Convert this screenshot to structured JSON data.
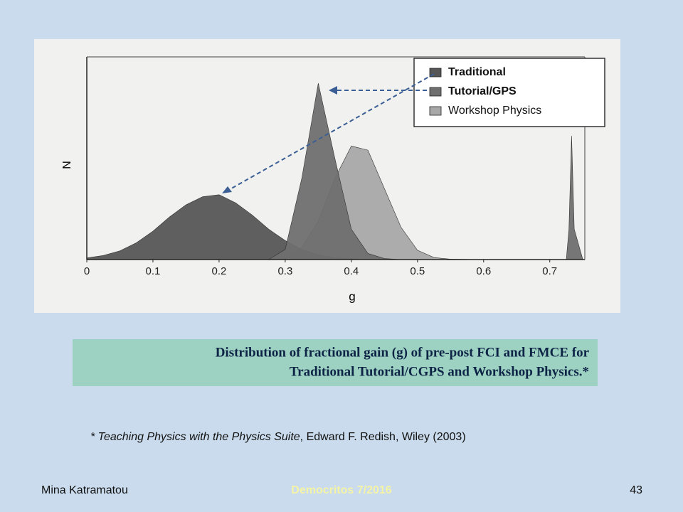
{
  "chart_data": {
    "type": "area",
    "x_label": "g",
    "y_label": "N",
    "x": [
      0,
      0.025,
      0.05,
      0.075,
      0.1,
      0.125,
      0.15,
      0.175,
      0.2,
      0.225,
      0.25,
      0.275,
      0.3,
      0.325,
      0.35,
      0.375,
      0.4,
      0.425,
      0.45,
      0.475,
      0.5,
      0.525,
      0.55,
      0.6,
      0.65,
      0.7,
      0.725,
      0.729,
      0.733,
      0.737,
      0.75
    ],
    "series": [
      {
        "name": "Traditional",
        "color": "#565656",
        "values": [
          0.8,
          2,
          4.3,
          8.3,
          14,
          21,
          27,
          31,
          32,
          28,
          22,
          15,
          9.4,
          5,
          2.3,
          1,
          0.4,
          0,
          0,
          0,
          0,
          0,
          0,
          0,
          0,
          0,
          0,
          0,
          0,
          0,
          0
        ]
      },
      {
        "name": "Tutorial/GPS",
        "color": "#6f6f6f",
        "values": [
          0,
          0,
          0,
          0,
          0,
          0,
          0,
          0,
          0,
          0,
          0,
          0,
          5,
          40,
          87,
          50,
          15,
          3,
          0.5,
          0,
          0,
          0,
          0,
          0,
          0,
          0,
          0,
          15,
          61,
          15,
          0
        ]
      },
      {
        "name": "Workshop Physics",
        "color": "#a8a8a8",
        "values": [
          0,
          0,
          0,
          0,
          0,
          0,
          0,
          0,
          0,
          0,
          0,
          0,
          1.3,
          6,
          19,
          40,
          56,
          54,
          35,
          16,
          4.6,
          1,
          0.2,
          0,
          0,
          0,
          0,
          0,
          0,
          0,
          0
        ]
      }
    ],
    "draw_order": [
      2,
      0,
      1
    ],
    "xlim": [
      0,
      0.753
    ],
    "ylim": [
      0,
      100
    ],
    "xticks": [
      0,
      0.1,
      0.2,
      0.3,
      0.4,
      0.5,
      0.6,
      0.7
    ]
  },
  "caption": [
    "Distribution of fractional gain (g) of pre-post FCI and FMCE for",
    "Traditional Tutorial/CGPS and Workshop Physics.*"
  ],
  "footnote": {
    "title": "* Teaching Physics with the Physics Suite",
    "rest": ", Edward F. Redish, Wiley (2003)"
  },
  "footer": {
    "author": "Mina Katramatou",
    "event": "Democritos 7/2016",
    "page": 43
  }
}
